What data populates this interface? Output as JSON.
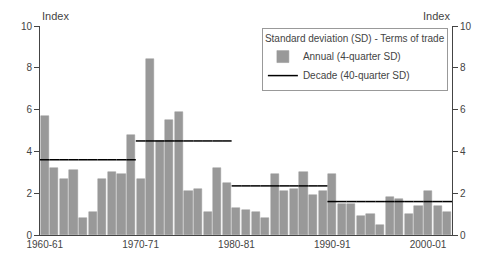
{
  "chart_data": {
    "type": "bar",
    "categories": [
      "1960-61",
      null,
      null,
      null,
      null,
      null,
      null,
      null,
      null,
      null,
      "1970-71",
      null,
      null,
      null,
      null,
      null,
      null,
      null,
      null,
      null,
      "1980-81",
      null,
      null,
      null,
      null,
      null,
      null,
      null,
      null,
      null,
      "1990-91",
      null,
      null,
      null,
      null,
      null,
      null,
      null,
      null,
      null,
      "2000-01",
      null,
      null
    ],
    "series": [
      {
        "name": "Annual (4-quarter SD)",
        "type": "bar",
        "color": "#999999",
        "values": [
          5.7,
          3.2,
          2.7,
          3.1,
          0.8,
          1.1,
          2.7,
          3.0,
          2.9,
          4.8,
          2.7,
          8.4,
          4.5,
          5.5,
          5.9,
          2.1,
          2.2,
          1.1,
          3.2,
          2.5,
          1.3,
          1.2,
          1.1,
          0.8,
          2.9,
          2.1,
          2.2,
          3.0,
          1.9,
          2.1,
          2.9,
          1.5,
          1.5,
          0.9,
          1.0,
          0.5,
          1.8,
          1.7,
          1.0,
          1.4,
          2.1,
          1.4,
          1.1
        ]
      },
      {
        "name": "Decade (40-quarter SD)",
        "type": "line",
        "color": "#000000",
        "values": [
          3.6,
          3.6,
          3.6,
          3.6,
          3.6,
          3.6,
          3.6,
          3.6,
          3.6,
          3.6,
          4.5,
          4.5,
          4.5,
          4.5,
          4.5,
          4.5,
          4.5,
          4.5,
          4.5,
          4.5,
          2.35,
          2.35,
          2.35,
          2.35,
          2.35,
          2.35,
          2.35,
          2.35,
          2.35,
          2.35,
          1.6,
          1.6,
          1.6,
          1.6,
          1.6,
          1.6,
          1.6,
          1.6,
          1.6,
          1.6,
          1.6,
          1.6,
          1.6
        ]
      }
    ],
    "ylabel": "Index",
    "y2label": "Index",
    "ylim": [
      0,
      10
    ],
    "yticks": [
      0,
      2,
      4,
      6,
      8,
      10
    ],
    "y2lim": [
      0,
      10
    ],
    "y2ticks": [
      0,
      2,
      4,
      6,
      8,
      10
    ],
    "legend_title": "Standard deviation (SD) - Terms of trade",
    "legend": "upper right",
    "grid": false
  }
}
